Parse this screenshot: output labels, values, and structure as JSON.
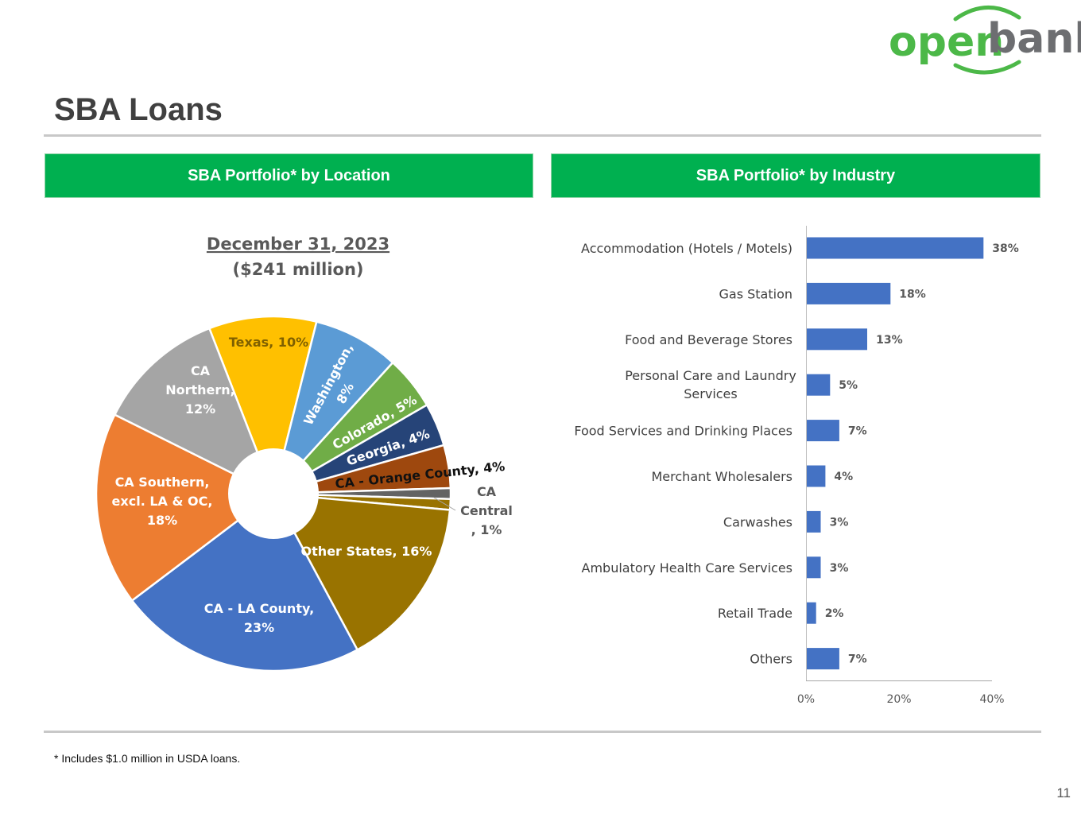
{
  "logo": {
    "word1": "open",
    "word2": "bank",
    "color1": "#4cb848",
    "color2": "#6d6e71"
  },
  "page_title": "SBA Loans",
  "left_header": "SBA Portfolio* by Location",
  "right_header": "SBA Portfolio* by Industry",
  "footnote": "* Includes $1.0 million in USDA loans.",
  "page_number": "11",
  "colors": {
    "accent_green": "#00b050",
    "rule": "#c8c8c8",
    "bar": "#4472c4"
  },
  "chart_data": [
    {
      "type": "pie",
      "title": "December 31, 2023",
      "subtitle": "($241 million)",
      "donut": true,
      "slices": [
        {
          "label": "Texas, 10%",
          "value": 10,
          "color": "#ffc000"
        },
        {
          "label": "Washington, 8%",
          "value": 8,
          "color": "#5b9bd5"
        },
        {
          "label": "Colorado, 5%",
          "value": 5,
          "color": "#70ad47"
        },
        {
          "label": "Georgia, 4%",
          "value": 4,
          "color": "#264478"
        },
        {
          "label": "CA - Orange County, 4%",
          "value": 4,
          "color": "#9e480e"
        },
        {
          "label": "",
          "value": 1,
          "color": "#636363"
        },
        {
          "label": "CA Central, 1%",
          "value": 1,
          "color": "#997300"
        },
        {
          "label": "Other States, 16%",
          "value": 16,
          "color": "#997300"
        },
        {
          "label": "CA - LA County, 23%",
          "value": 23,
          "color": "#4472c4"
        },
        {
          "label": "CA Southern, excl. LA & OC, 18%",
          "value": 18,
          "color": "#ed7d31"
        },
        {
          "label": "CA Northern, 12%",
          "value": 12,
          "color": "#a5a5a5"
        }
      ]
    },
    {
      "type": "bar",
      "orientation": "horizontal",
      "categories": [
        "Accommodation (Hotels / Motels)",
        "Gas Station",
        "Food and Beverage Stores",
        "Personal Care and Laundry Services",
        "Food Services and Drinking Places",
        "Merchant Wholesalers",
        "Carwashes",
        "Ambulatory Health Care Services",
        "Retail Trade",
        "Others"
      ],
      "values": [
        38,
        18,
        13,
        5,
        7,
        4,
        3,
        3,
        2,
        7
      ],
      "data_labels": [
        "38%",
        "18%",
        "13%",
        "5%",
        "7%",
        "4%",
        "3%",
        "3%",
        "2%",
        "7%"
      ],
      "xlim": [
        0,
        40
      ],
      "x_ticks": [
        "0%",
        "20%",
        "40%"
      ],
      "color": "#4472c4"
    }
  ]
}
